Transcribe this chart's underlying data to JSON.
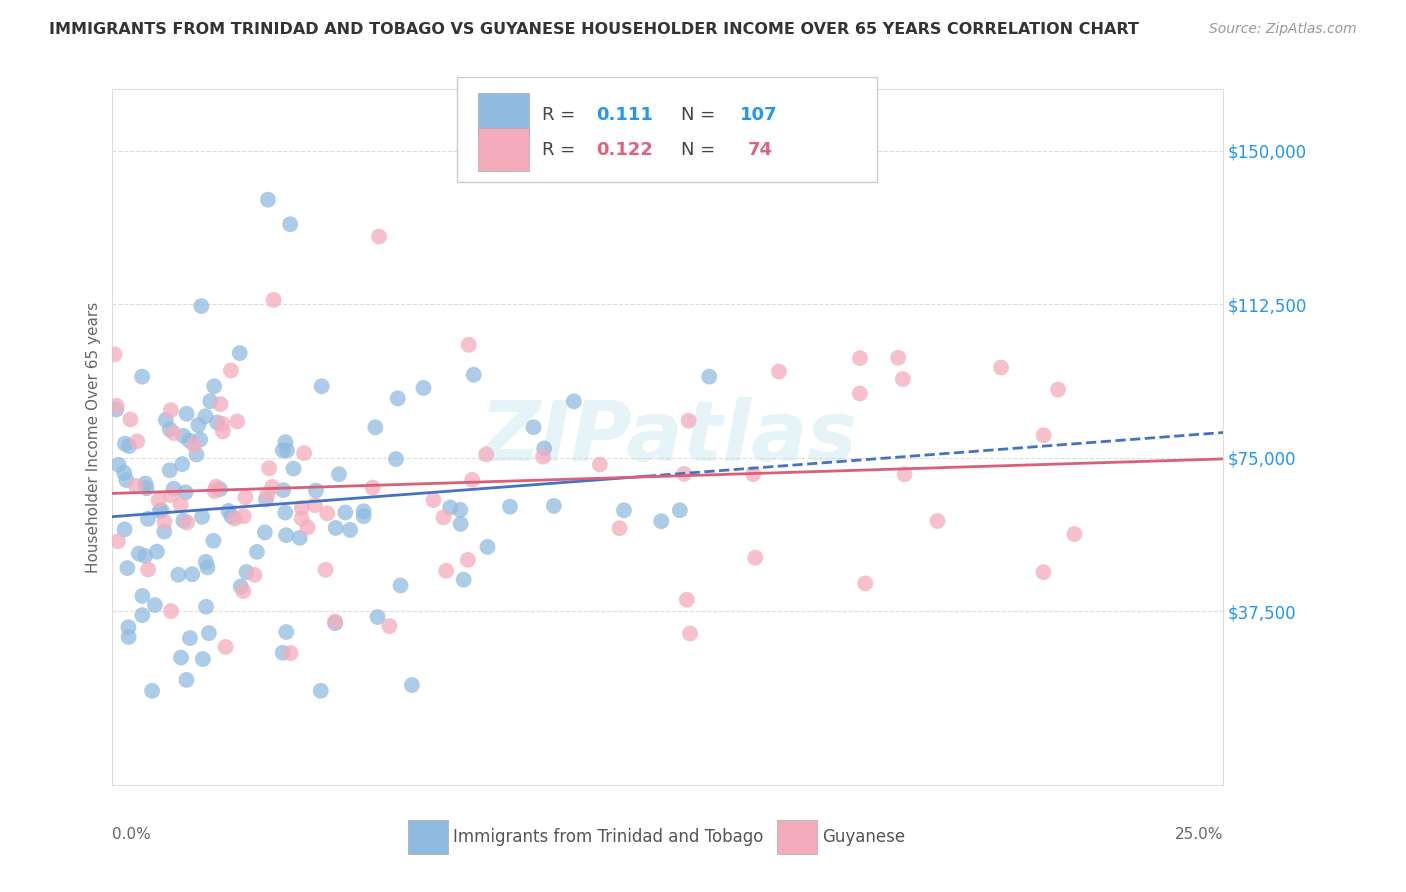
{
  "title": "IMMIGRANTS FROM TRINIDAD AND TOBAGO VS GUYANESE HOUSEHOLDER INCOME OVER 65 YEARS CORRELATION CHART",
  "source": "Source: ZipAtlas.com",
  "ylabel": "Householder Income Over 65 years",
  "ytick_labels": [
    "$37,500",
    "$75,000",
    "$112,500",
    "$150,000"
  ],
  "ytick_values": [
    37500,
    75000,
    112500,
    150000
  ],
  "ylim": [
    -5000,
    165000
  ],
  "xlim": [
    0.0,
    0.25
  ],
  "blue_scatter_color": "#90BBE0",
  "pink_scatter_color": "#F4ACBC",
  "blue_line_color": "#4472C4",
  "pink_line_color": "#D9607A",
  "blue_N": 107,
  "pink_N": 74,
  "blue_R": 0.111,
  "pink_R": 0.122,
  "watermark": "ZIPatlas",
  "bg_color": "#FFFFFF",
  "grid_color": "#DDDDDD",
  "right_label_color": "#2196F3",
  "pink_label_color": "#E06080",
  "title_fontsize": 11.5,
  "source_fontsize": 10,
  "tick_fontsize": 12
}
